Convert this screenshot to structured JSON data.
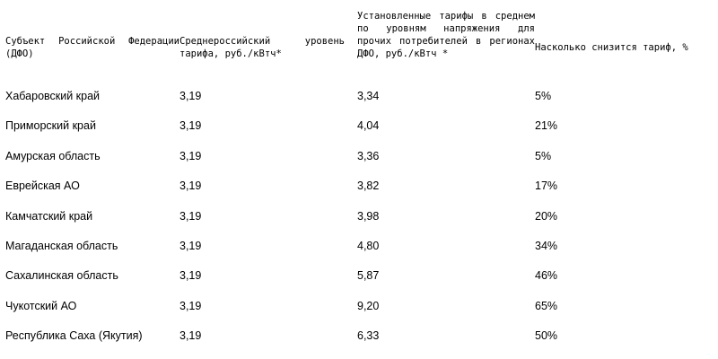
{
  "table": {
    "headers": [
      "Субъект Российской Федерации (ДФО)",
      "Среднероссийский уровень тарифа, руб./кВтч*",
      "Установленные тарифы в среднем по уровням напряжения для прочих потребителей в регионах ДФО, руб./кВтч *",
      "Насколько снизится тариф, %"
    ],
    "rows": [
      [
        "Хабаровский край",
        "3,19",
        "3,34",
        "5%"
      ],
      [
        "Приморский край",
        "3,19",
        "4,04",
        "21%"
      ],
      [
        "Амурская область",
        "3,19",
        "3,36",
        "5%"
      ],
      [
        "Еврейская АО",
        "3,19",
        "3,82",
        "17%"
      ],
      [
        "Камчатский край",
        "3,19",
        "3,98",
        "20%"
      ],
      [
        "Магаданская область",
        "3,19",
        "4,80",
        "34%"
      ],
      [
        "Сахалинская область",
        "3,19",
        "5,87",
        "46%"
      ],
      [
        "Чукотский АО",
        "3,19",
        "9,20",
        "65%"
      ],
      [
        "Республика Саха (Якутия)",
        "3,19",
        "6,33",
        "50%"
      ]
    ]
  }
}
